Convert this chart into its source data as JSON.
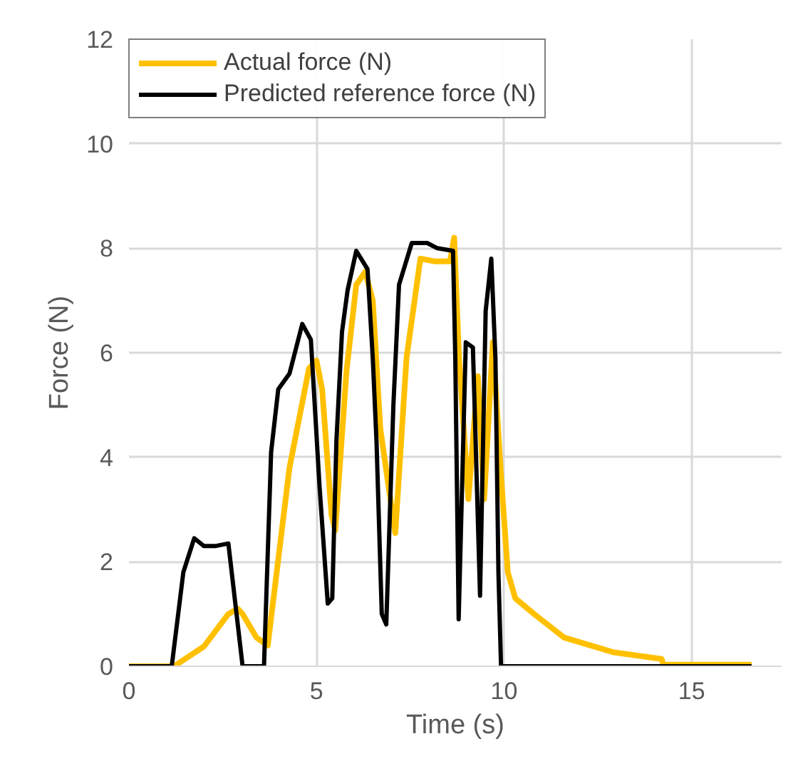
{
  "chart_data": {
    "type": "line",
    "xlabel": "Time (s)",
    "ylabel": "Force (N)",
    "xlim": [
      0,
      17.4
    ],
    "ylim": [
      0,
      12
    ],
    "xticks": [
      0,
      5,
      10,
      15
    ],
    "yticks": [
      0,
      2,
      4,
      6,
      8,
      10,
      12
    ],
    "grid": true,
    "legend": "top left",
    "marker": "none",
    "line_style": "solid",
    "series": [
      {
        "name": "Actual force (N)",
        "color": "#ffc000",
        "x": [
          0,
          1.2,
          2.0,
          2.65,
          2.9,
          3.03,
          3.4,
          3.7,
          4.28,
          4.8,
          5.0,
          5.15,
          5.4,
          5.5,
          5.8,
          6.06,
          6.3,
          6.5,
          6.7,
          7.1,
          7.4,
          7.77,
          8.14,
          8.56,
          8.67,
          8.8,
          9.05,
          9.3,
          9.47,
          9.7,
          9.92,
          10.1,
          10.3,
          10.8,
          11.6,
          12.9,
          14.2,
          14.25,
          16.6
        ],
        "values": [
          0,
          0,
          0.38,
          1.0,
          1.1,
          1.0,
          0.55,
          0.4,
          3.8,
          5.7,
          5.85,
          5.3,
          2.9,
          2.6,
          5.65,
          7.3,
          7.55,
          7.0,
          4.55,
          2.55,
          5.9,
          7.8,
          7.75,
          7.75,
          8.2,
          5.9,
          3.2,
          5.55,
          3.2,
          6.2,
          3.65,
          1.8,
          1.3,
          1.0,
          0.55,
          0.27,
          0.14,
          0.03,
          0.03
        ]
      },
      {
        "name": "Predicted reference force (N)",
        "color": "#000000",
        "x": [
          0,
          1.14,
          1.45,
          1.74,
          2.0,
          2.3,
          2.65,
          3.03,
          3.6,
          3.79,
          3.98,
          4.28,
          4.62,
          4.85,
          5.08,
          5.3,
          5.42,
          5.53,
          5.68,
          5.83,
          6.06,
          6.36,
          6.5,
          6.6,
          6.74,
          6.86,
          7.05,
          7.2,
          7.54,
          7.95,
          8.22,
          8.64,
          8.7,
          8.79,
          8.98,
          9.17,
          9.36,
          9.51,
          9.66,
          9.77,
          9.85,
          9.92,
          16.6
        ],
        "values": [
          0,
          0,
          1.8,
          2.45,
          2.3,
          2.3,
          2.35,
          0,
          0,
          4.1,
          5.3,
          5.6,
          6.55,
          6.25,
          3.45,
          1.2,
          1.3,
          4.3,
          6.4,
          7.2,
          7.95,
          7.6,
          5.9,
          4.3,
          1.0,
          0.8,
          5.0,
          7.3,
          8.1,
          8.1,
          8.0,
          7.95,
          5.9,
          0.9,
          6.2,
          6.1,
          1.35,
          6.8,
          7.8,
          5.9,
          1.8,
          0,
          0
        ]
      }
    ]
  }
}
